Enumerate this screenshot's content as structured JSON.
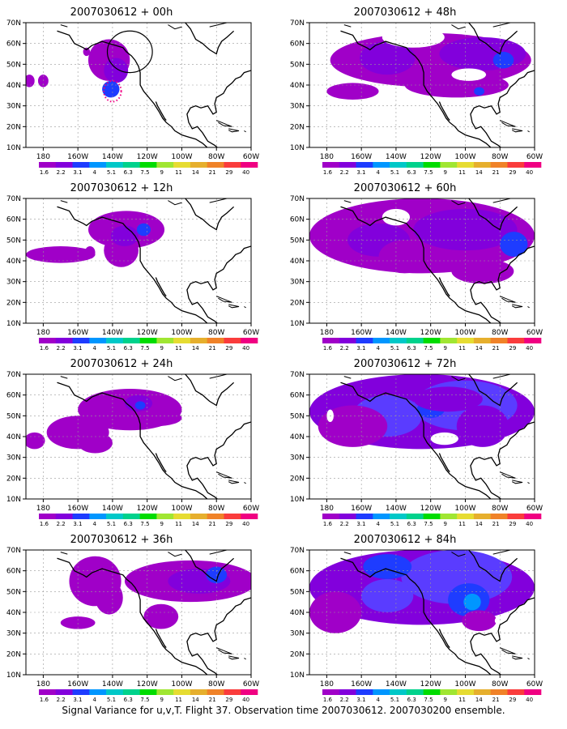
{
  "colors": {
    "land_outline": "#000000",
    "grid": "#999999",
    "scale": [
      "#a000c8",
      "#8200dc",
      "#1e3cff",
      "#0096ff",
      "#00c8c8",
      "#00d28c",
      "#00dc00",
      "#a0e632",
      "#e6dc32",
      "#e6af2d",
      "#f08228",
      "#fa3c3c",
      "#f00082"
    ],
    "shade_levels": [
      "#a000c8",
      "#8200dc",
      "#5a3cff",
      "#1e3cff",
      "#0096ff",
      "#00c8c8"
    ]
  },
  "axes": {
    "lon_labels": [
      "180",
      "160W",
      "140W",
      "120W",
      "100W",
      "80W",
      "60W"
    ],
    "lat_labels": [
      "70N",
      "60N",
      "50N",
      "40N",
      "30N",
      "20N",
      "10N"
    ],
    "lon_range": [
      170,
      300
    ],
    "lat_range": [
      10,
      70
    ]
  },
  "colorbar": {
    "labels": [
      "1.6",
      "2.2",
      "3.1",
      "4",
      "5.1",
      "6.3",
      "7.5",
      "9",
      "11",
      "14",
      "21",
      "29",
      "40"
    ]
  },
  "panels": [
    {
      "title": "2007030612 + 00h",
      "col": 0,
      "row": 0,
      "lead": 0,
      "features": [
        {
          "type": "circle",
          "lon": 230,
          "lat": 56,
          "r_lon": 13,
          "r_lat": 10,
          "color": "#000000",
          "style": "solid"
        },
        {
          "type": "circle",
          "lon": 220,
          "lat": 37,
          "r_lon": 5,
          "r_lat": 5,
          "color": "#f00082",
          "style": "dotted"
        }
      ]
    },
    {
      "title": "2007030612 + 48h",
      "col": 1,
      "row": 0,
      "lead": 48,
      "features": []
    },
    {
      "title": "2007030612 + 12h",
      "col": 0,
      "row": 1,
      "lead": 12,
      "features": []
    },
    {
      "title": "2007030612 + 60h",
      "col": 1,
      "row": 1,
      "lead": 60,
      "features": []
    },
    {
      "title": "2007030612 + 24h",
      "col": 0,
      "row": 2,
      "lead": 24,
      "features": []
    },
    {
      "title": "2007030612 + 72h",
      "col": 1,
      "row": 2,
      "lead": 72,
      "features": []
    },
    {
      "title": "2007030612 + 36h",
      "col": 0,
      "row": 3,
      "lead": 36,
      "features": []
    },
    {
      "title": "2007030612 + 84h",
      "col": 1,
      "row": 3,
      "lead": 84,
      "features": []
    }
  ],
  "footer": "Signal Variance for u,v,T. Flight 37. Observation time 2007030612. 2007030200 ensemble."
}
